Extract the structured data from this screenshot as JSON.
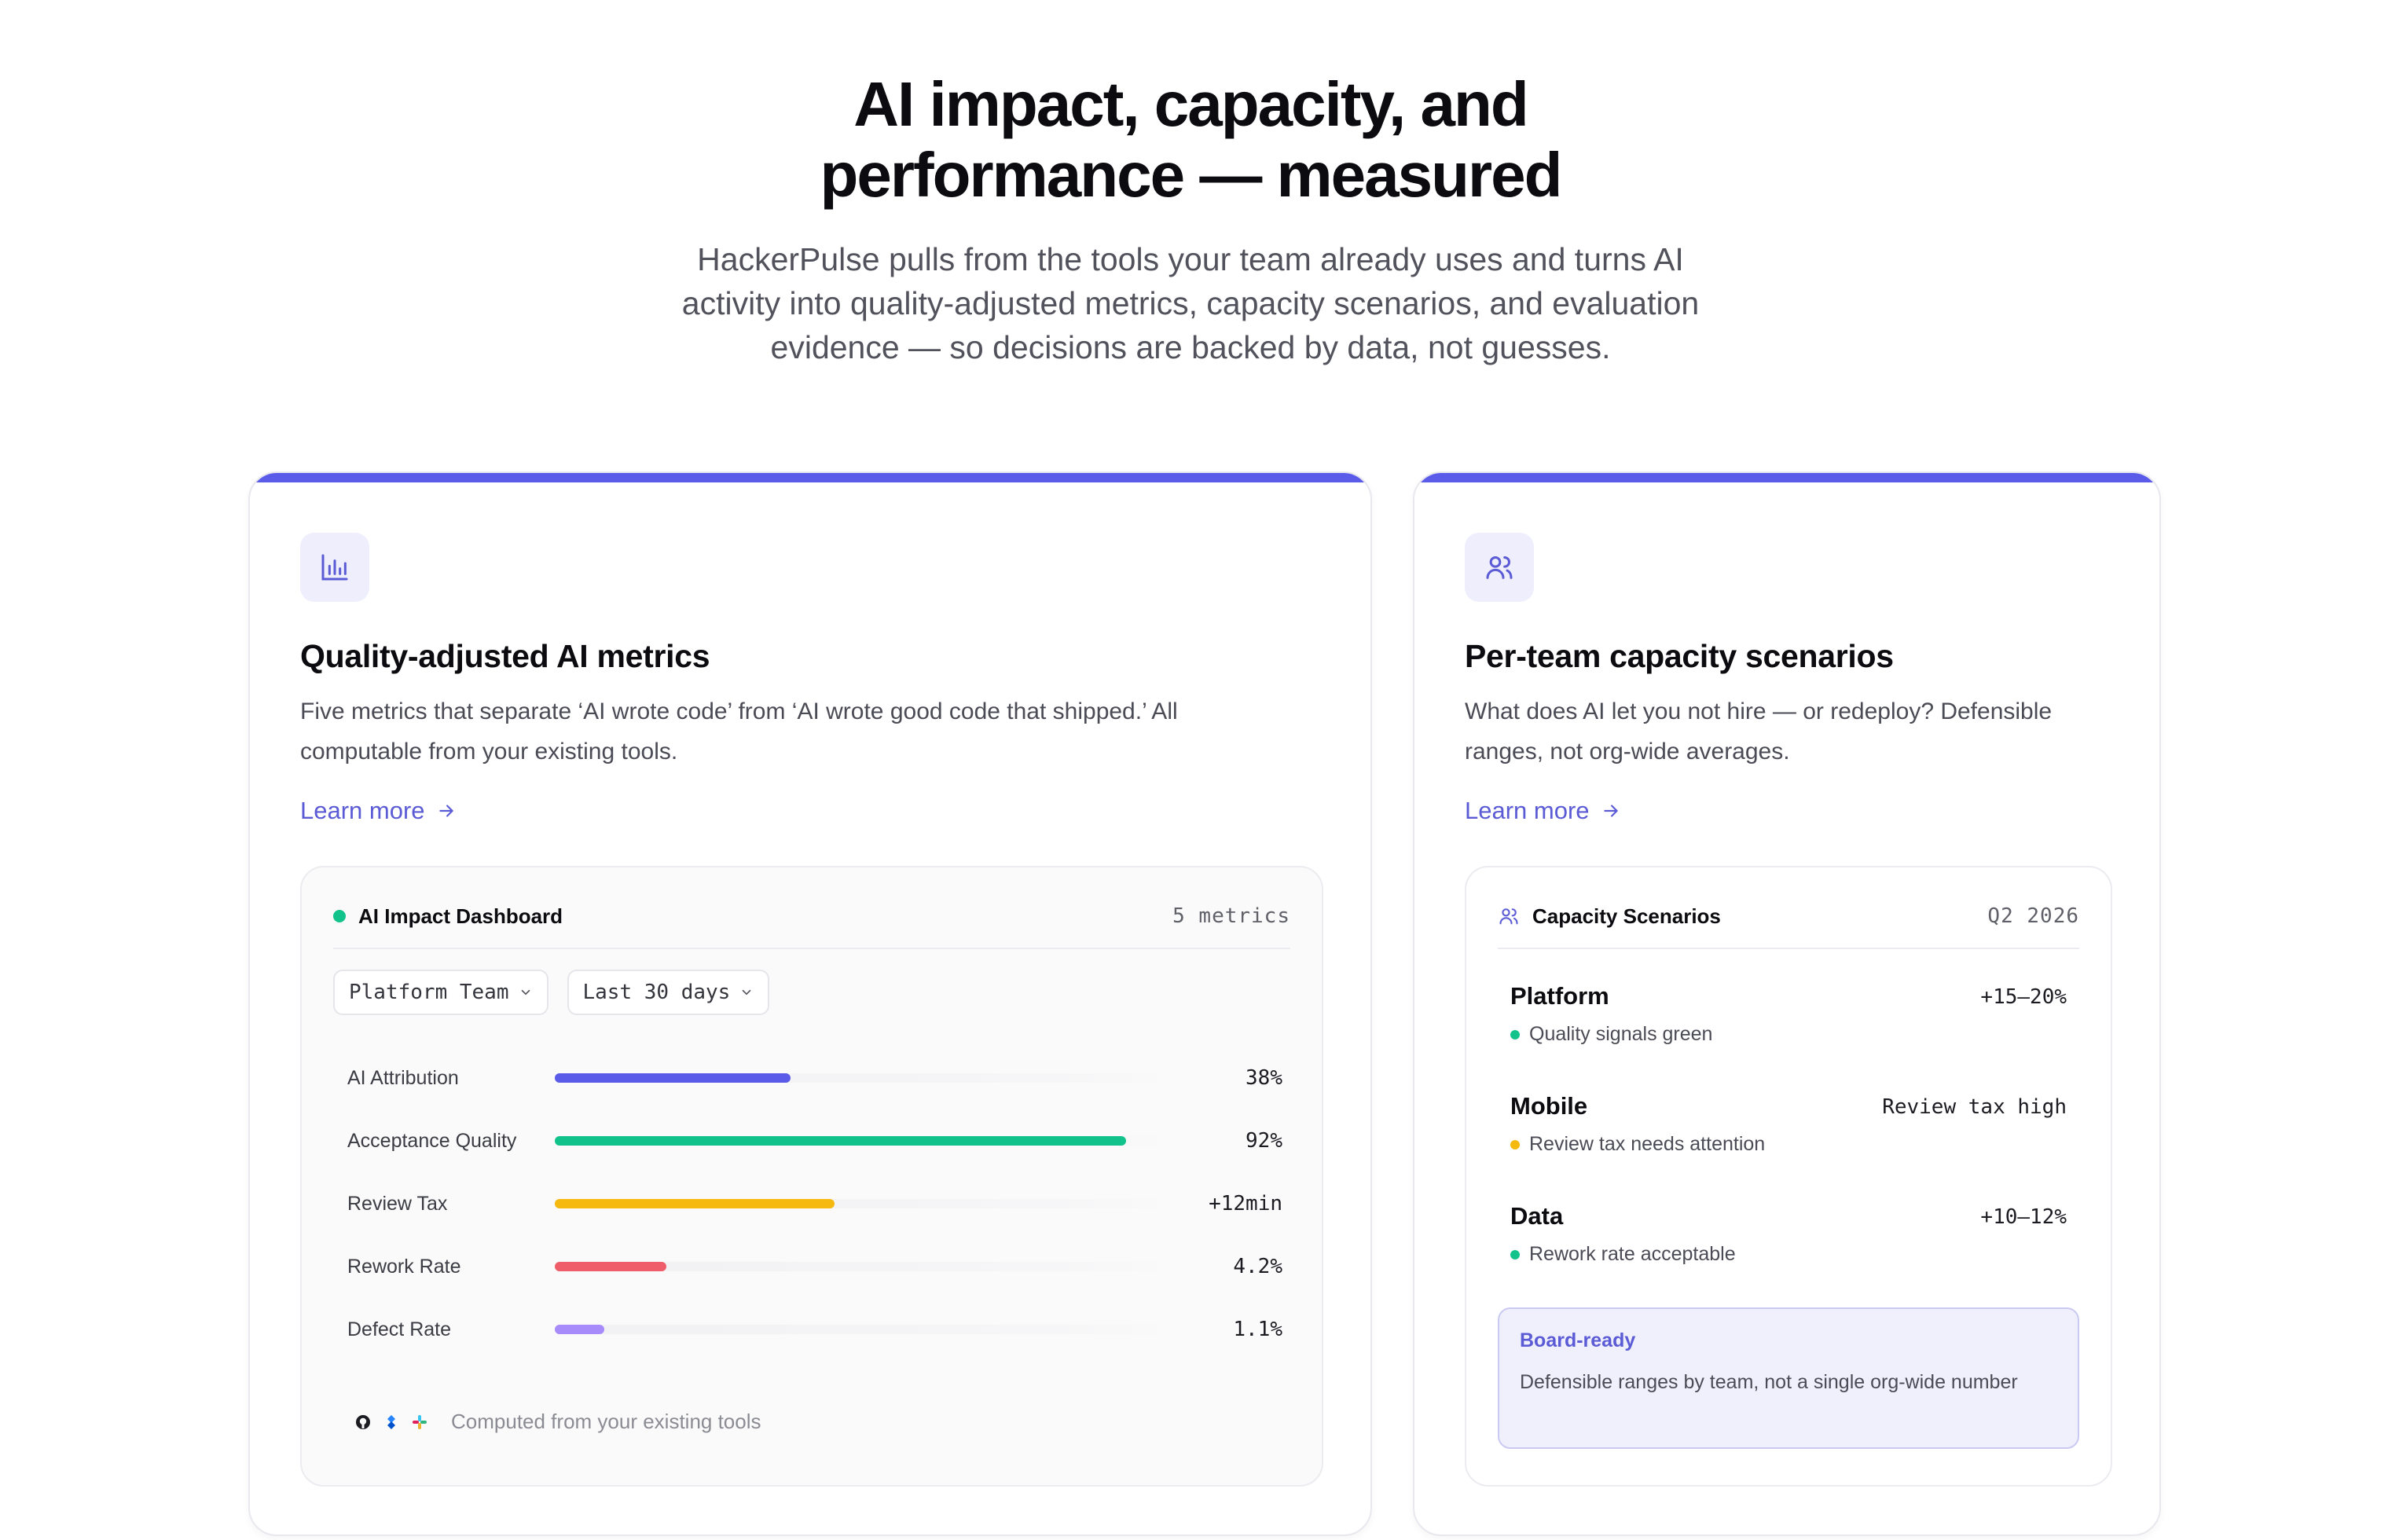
{
  "hero": {
    "title_line1": "AI impact, capacity, and",
    "title_line2": "performance — measured",
    "subtitle": "HackerPulse pulls from the tools your team already uses and turns AI activity into quality-adjusted metrics, capacity scenarios, and evaluation evidence — so decisions are backed by data, not guesses."
  },
  "colors": {
    "accent": "#5b5bea",
    "link": "#5b5bd6",
    "green": "#11c38a",
    "amber": "#f5b90f",
    "red": "#ef5d6b",
    "purple": "#a78bfa"
  },
  "left_card": {
    "icon": "bar-chart-icon",
    "title": "Quality-adjusted AI metrics",
    "description": "Five metrics that separate ‘AI wrote code’ from ‘AI wrote good code that shipped.’ All computable from your existing tools.",
    "learn_more": "Learn more",
    "dashboard": {
      "title": "AI Impact Dashboard",
      "count": "5 metrics",
      "filters": [
        {
          "label": "Platform Team"
        },
        {
          "label": "Last 30 days"
        }
      ],
      "metrics": [
        {
          "label": "AI Attribution",
          "value": "38%",
          "level": 0.38,
          "color": "#5b5bea"
        },
        {
          "label": "Acceptance Quality",
          "value": "92%",
          "level": 0.92,
          "color": "#11c38a"
        },
        {
          "label": "Review Tax",
          "value": "+12min",
          "level": 0.45,
          "color": "#f5b90f"
        },
        {
          "label": "Rework Rate",
          "value": "4.2%",
          "level": 0.18,
          "color": "#ef5d6b"
        },
        {
          "label": "Defect Rate",
          "value": "1.1%",
          "level": 0.08,
          "color": "#a78bfa"
        }
      ],
      "footer": "Computed from your existing tools"
    }
  },
  "right_card": {
    "icon": "users-icon",
    "title": "Per-team capacity scenarios",
    "description": "What does AI let you not hire — or redeploy? Defensible ranges, not org-wide averages.",
    "learn_more": "Learn more",
    "panel": {
      "title": "Capacity Scenarios",
      "period": "Q2 2026",
      "scenarios": [
        {
          "team": "Platform",
          "value": "+15–20%",
          "note": "Quality signals green",
          "status_color": "#11c38a"
        },
        {
          "team": "Mobile",
          "value": "Review tax high",
          "note": "Review tax needs attention",
          "status_color": "#f5b90f"
        },
        {
          "team": "Data",
          "value": "+10–12%",
          "note": "Rework rate acceptable",
          "status_color": "#11c38a"
        }
      ],
      "callout": {
        "title": "Board-ready",
        "text": "Defensible ranges by team, not a single org-wide number"
      }
    }
  }
}
